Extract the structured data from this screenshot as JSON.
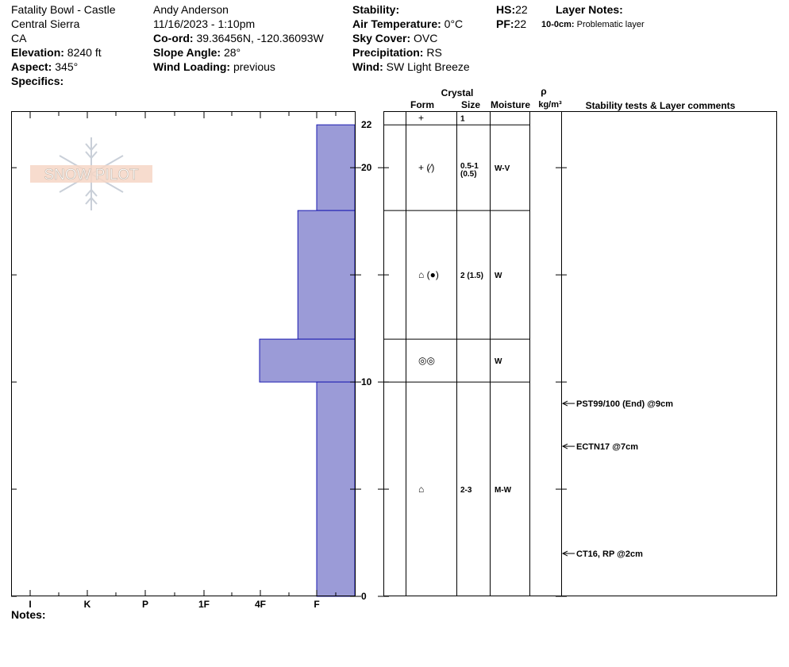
{
  "header": {
    "location": "Fatality Bowl - Castle",
    "region": "Central Sierra",
    "state": "CA",
    "elevation_label": "Elevation:",
    "elevation_value": "8240 ft",
    "aspect_label": "Aspect:",
    "aspect_value": "345°",
    "specifics_label": "Specifics:",
    "observer": "Andy Anderson",
    "datetime": "11/16/2023 - 1:10pm",
    "coord_label": "Co-ord:",
    "coord_value": "39.36456N, -120.36093W",
    "slope_label": "Slope Angle:",
    "slope_value": "28°",
    "wind_loading_label": "Wind Loading:",
    "wind_loading_value": "previous",
    "stability_label": "Stability:",
    "air_temp_label": "Air Temperature:",
    "air_temp_value": "0°C",
    "sky_label": "Sky Cover:",
    "sky_value": "OVC",
    "precip_label": "Precipitation:",
    "precip_value": "RS",
    "wind_label": "Wind:",
    "wind_value": "SW Light Breeze",
    "hs_label": "HS:",
    "hs_value": "22",
    "pf_label": "PF:",
    "pf_value": "22",
    "layer_notes_label": "Layer Notes:",
    "layer_note_range": "10-0cm:",
    "layer_note_text": "Problematic layer"
  },
  "watermark": "SNOW PILOT",
  "notes_label": "Notes:",
  "columns": {
    "crystal": "Crystal",
    "form": "Form",
    "size": "Size",
    "moisture": "Moisture",
    "rho": "ρ",
    "density_unit": "kg/m³",
    "stability_header": "Stability tests & Layer comments"
  },
  "chart_data": {
    "type": "bar",
    "title": "",
    "y_axis": {
      "label": "",
      "range": [
        0,
        22
      ],
      "ticks": [
        0,
        10,
        20,
        22
      ]
    },
    "x_axis": {
      "label": "",
      "categories": [
        "I",
        "K",
        "P",
        "1F",
        "4F",
        "F"
      ],
      "reversed": true
    },
    "hardness_profile": [
      {
        "top": 22,
        "bottom": 18,
        "hardness": "F"
      },
      {
        "top": 18,
        "bottom": 12,
        "hardness": "F+"
      },
      {
        "top": 12,
        "bottom": 10,
        "hardness": "4F"
      },
      {
        "top": 10,
        "bottom": 0,
        "hardness": "F"
      }
    ],
    "hardness_index": {
      "I": 5,
      "K": 4,
      "P": 3,
      "1F": 2,
      "4F": 1,
      "F+": 0.33,
      "F": 0
    },
    "layers": [
      {
        "top": 22,
        "bottom": 22,
        "form": "+",
        "size": "1",
        "moisture": ""
      },
      {
        "top": 22,
        "bottom": 18,
        "form": "+ (⁄)",
        "size": "0.5-1",
        "size2": "(0.5)",
        "moisture": "W-V"
      },
      {
        "top": 18,
        "bottom": 12,
        "form": "⌂ (●)",
        "size": "2 (1.5)",
        "moisture": "W"
      },
      {
        "top": 12,
        "bottom": 10,
        "form": "◎◎",
        "size": "",
        "moisture": "W"
      },
      {
        "top": 10,
        "bottom": 0,
        "form": "⌂",
        "size": "2-3",
        "moisture": "M-W"
      }
    ],
    "stability_tests": [
      {
        "depth": 9,
        "text": "PST99/100 (End) @9cm"
      },
      {
        "depth": 7,
        "text": "ECTN17 @7cm"
      },
      {
        "depth": 2,
        "text": "CT16, RP @2cm"
      }
    ],
    "colors": {
      "bar": "#9b9bd7",
      "bar_edge": "#1a1ab0"
    }
  }
}
